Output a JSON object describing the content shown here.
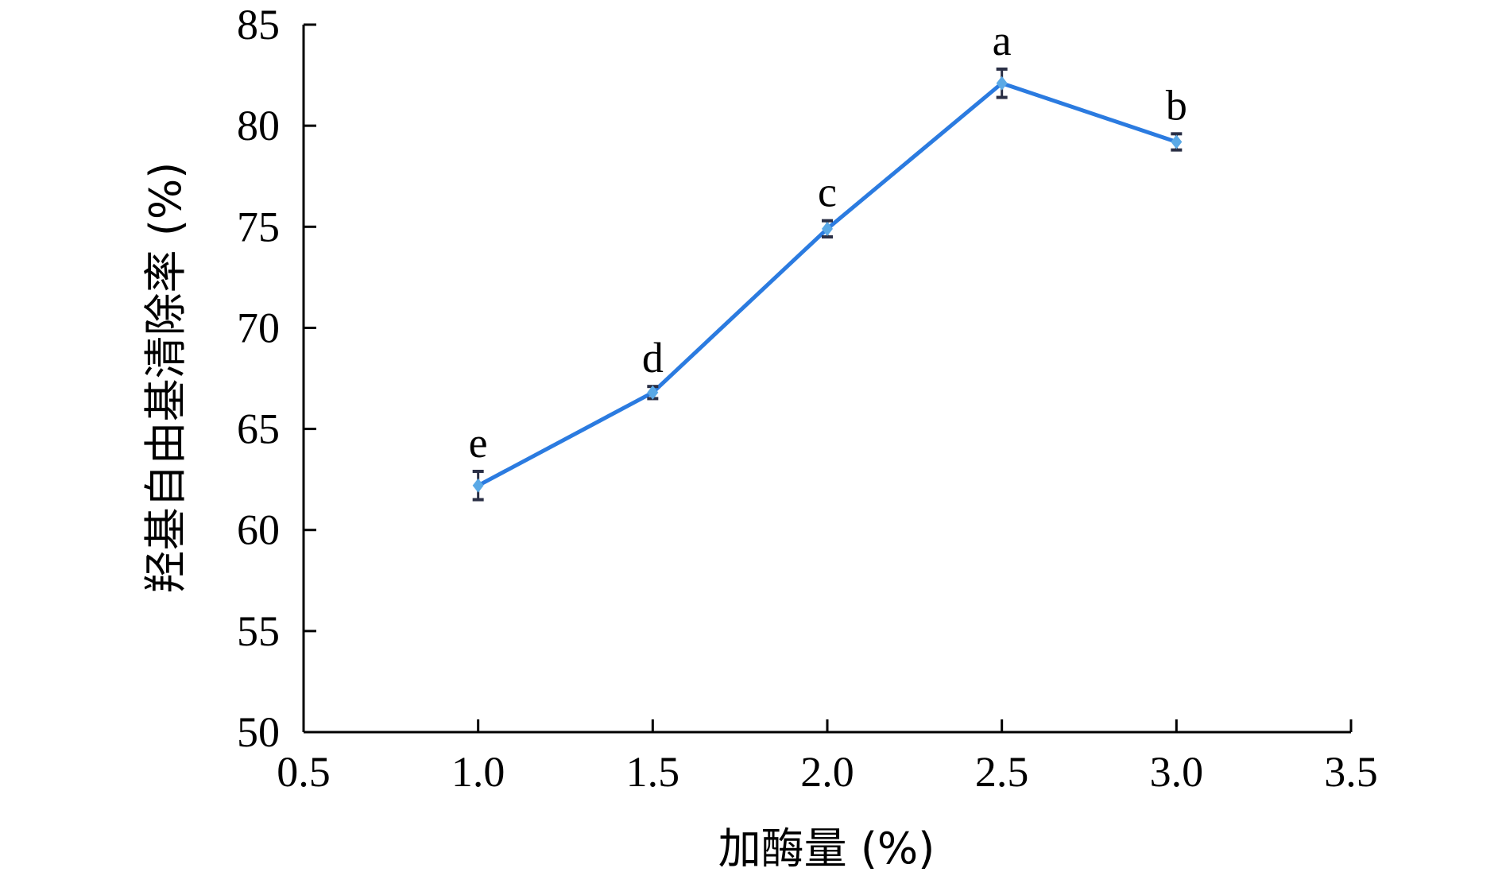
{
  "chart_data": {
    "type": "line",
    "title": "",
    "xlabel": "加酶量 (%)",
    "ylabel": "羟基自由基清除率 (%)",
    "xlim": [
      0.5,
      3.5
    ],
    "ylim": [
      50,
      85
    ],
    "xticks": [
      "0.5",
      "1.0",
      "1.5",
      "2.0",
      "2.5",
      "3.0",
      "3.5"
    ],
    "yticks": [
      "50",
      "55",
      "60",
      "65",
      "70",
      "75",
      "80",
      "85"
    ],
    "grid": false,
    "legend": "none",
    "series": [
      {
        "x": [
          1.0,
          1.5,
          2.0,
          2.5,
          3.0
        ],
        "y": [
          62.2,
          66.8,
          74.9,
          82.1,
          79.2
        ],
        "error": [
          0.7,
          0.3,
          0.4,
          0.7,
          0.4
        ],
        "labels": [
          "e",
          "d",
          "c",
          "a",
          "b"
        ],
        "color": "#2b7be0",
        "marker_color": "#5aa9e6"
      }
    ]
  }
}
